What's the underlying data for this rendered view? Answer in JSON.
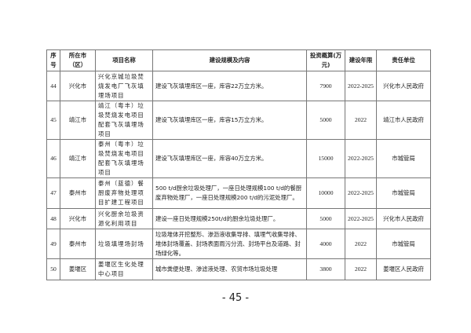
{
  "table": {
    "headers": [
      "序号",
      "所在市（区）",
      "项目名称",
      "建设规模及内容",
      "投资概算(万元)",
      "建设年限",
      "责任单位"
    ],
    "rows": [
      [
        "44",
        "兴化市",
        "兴化京城垃圾焚烧发电厂飞灰填埋场项目",
        "建设飞灰填埋库区一座，库容22万立方米。",
        "7900",
        "2022-2025",
        "兴化市人民政府"
      ],
      [
        "45",
        "靖江市",
        "靖江（粤丰）垃圾焚烧发电项目配套飞灰填埋场项目",
        "建设飞灰填埋库区一座，库容15万立方米。",
        "5000",
        "2022",
        "靖江市人民政府"
      ],
      [
        "46",
        "靖江市",
        "泰州（粤丰）垃圾焚烧发电项目配套飞灰填埋场项目",
        "建设飞灰填埋库区一座，库容40万立方米。",
        "15000",
        "2022-2025",
        "市城管局"
      ],
      [
        "47",
        "泰州市",
        "泰州（蓝德）餐厨废弃物处理项目扩建工程项目",
        "500 t/d厨余垃圾处理厂，一座日处理规模100 t/d的餐厨废弃物处理厂，一座日处理规模200 t/d的污泥处理厂。",
        "10000",
        "2022-2025",
        "市城管局"
      ],
      [
        "48",
        "兴化市",
        "兴化厨余垃圾资源化利用项目",
        "建设一座日处理规模250t/d的厨余垃圾处理厂。",
        "5000",
        "2022-2025",
        "兴化市人民政府"
      ],
      [
        "49",
        "泰州市",
        "垃圾填埋场封场",
        "垃圾堆体开挖整形、渗沥液收集导排、填埋气收集导排、堆体封场覆盖、封场表面雨污分流、封场平台及道路、封场绿化等。",
        "4000",
        "2022",
        "市城管局"
      ],
      [
        "50",
        "姜堰区",
        "姜堰区生化处理中心项目",
        "城市粪便处理、渗滤液处理、农贸市场垃圾处理",
        "3800",
        "2022",
        "姜堰区人民政府"
      ]
    ]
  },
  "page_number": "- 45 -"
}
